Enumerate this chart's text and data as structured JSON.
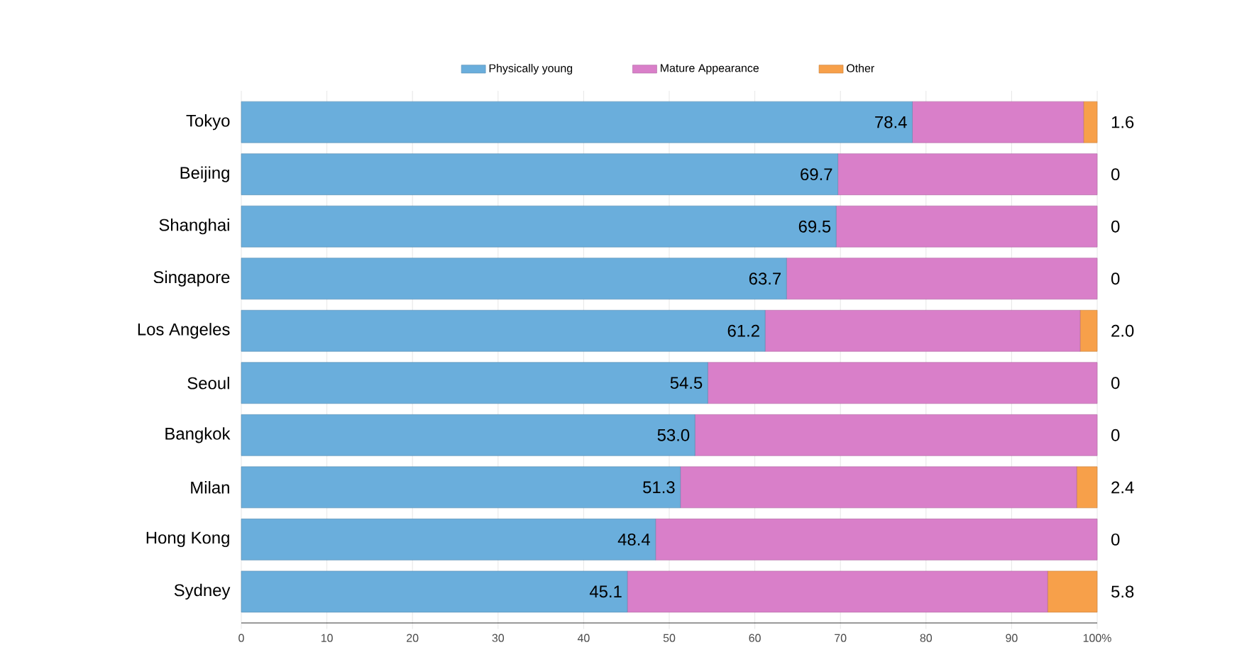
{
  "chart_data": {
    "type": "bar",
    "orientation": "horizontal",
    "stacked": true,
    "grid": "x",
    "legend": "top",
    "categories": [
      "Tokyo",
      "Beijing",
      "Shanghai",
      "Singapore",
      "Los Angeles",
      "Seoul",
      "Bangkok",
      "Milan",
      "Hong Kong",
      "Sydney"
    ],
    "series": [
      {
        "name": "Physically young",
        "color": "#6aaedc",
        "values": [
          78.4,
          69.7,
          69.5,
          63.7,
          61.2,
          54.5,
          53.0,
          51.3,
          48.4,
          45.1
        ],
        "value_labels": [
          "78.4",
          "69.7",
          "69.5",
          "63.7",
          "61.2",
          "54.5",
          "53.0",
          "51.3",
          "48.4",
          "45.1"
        ]
      },
      {
        "name": "Mature Appearance",
        "color": "#d97fc9",
        "values": [
          20.0,
          30.3,
          30.5,
          36.3,
          36.8,
          45.5,
          47.0,
          46.3,
          51.6,
          49.1
        ]
      },
      {
        "name": "Other",
        "color": "#f7a04a",
        "values": [
          1.6,
          0,
          0,
          0,
          2.0,
          0,
          0,
          2.4,
          0,
          5.8
        ],
        "value_labels": [
          "1.6",
          "0",
          "0",
          "0",
          "2.0",
          "0",
          "0",
          "2.4",
          "0",
          "5.8"
        ]
      }
    ],
    "xlim": [
      0,
      100
    ],
    "xticks": [
      0,
      10,
      20,
      30,
      40,
      50,
      60,
      70,
      80,
      90,
      {
        "value": 100,
        "label": "100%"
      }
    ]
  }
}
